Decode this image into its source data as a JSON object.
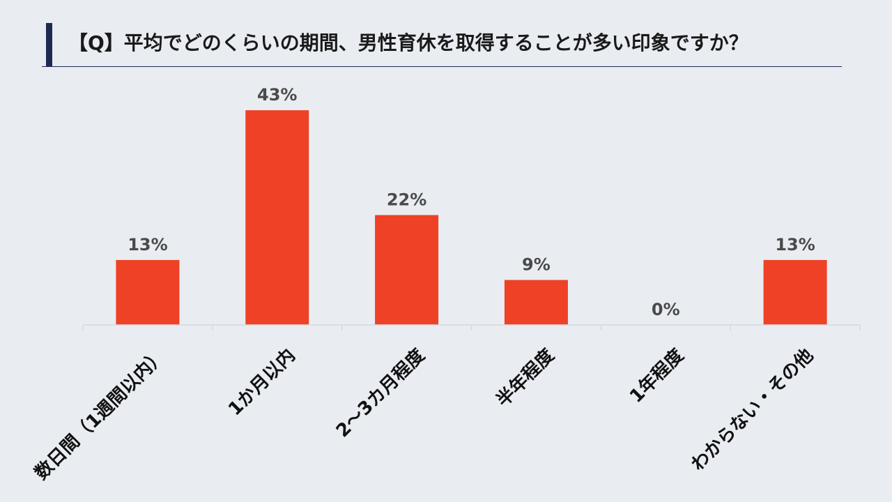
{
  "title": "【Q】平均でどのくらいの期間、男性育休を取得することが多い印象ですか？",
  "colors": {
    "bar": "#ef4126",
    "accent": "#1d2a52",
    "background": "#e9edf1",
    "axis": "#d6dadf"
  },
  "chart_data": {
    "type": "bar",
    "title": "【Q】平均でどのくらいの期間、男性育休を取得することが多い印象ですか？",
    "categories": [
      "数日間（1週間以内）",
      "1か月以内",
      "2～3カ月程度",
      "半年程度",
      "1年程度",
      "わからない・その他"
    ],
    "values": [
      13,
      43,
      22,
      9,
      0,
      13
    ],
    "value_labels": [
      "13%",
      "43%",
      "22%",
      "9%",
      "0%",
      "13%"
    ],
    "unit": "%",
    "ylim": [
      0,
      50
    ],
    "grid": false,
    "legend": "none",
    "xlabel": "",
    "ylabel": ""
  }
}
